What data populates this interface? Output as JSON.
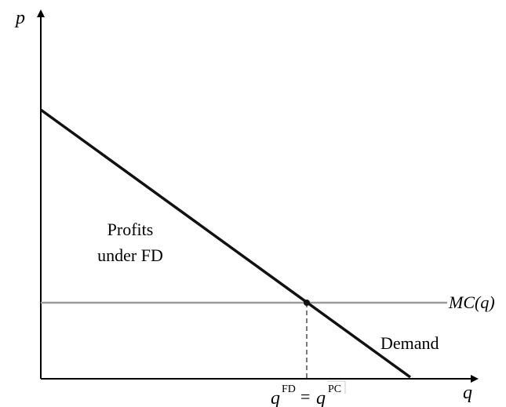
{
  "axes": {
    "y_label": "p",
    "x_label": "q"
  },
  "labels": {
    "profits_line1": "Profits",
    "profits_line2": "under FD",
    "mc_label": "MC(q)",
    "demand_label": "Demand",
    "q_symbol_1": "q",
    "fd_superscript": "FD",
    "equals": "=",
    "q_symbol_2": "q",
    "pc_superscript": "PC"
  },
  "colors": {
    "demand_line": "#111111",
    "mc_line": "#9a9a9a",
    "axis": "#000000",
    "dashed_line": "#222222"
  }
}
